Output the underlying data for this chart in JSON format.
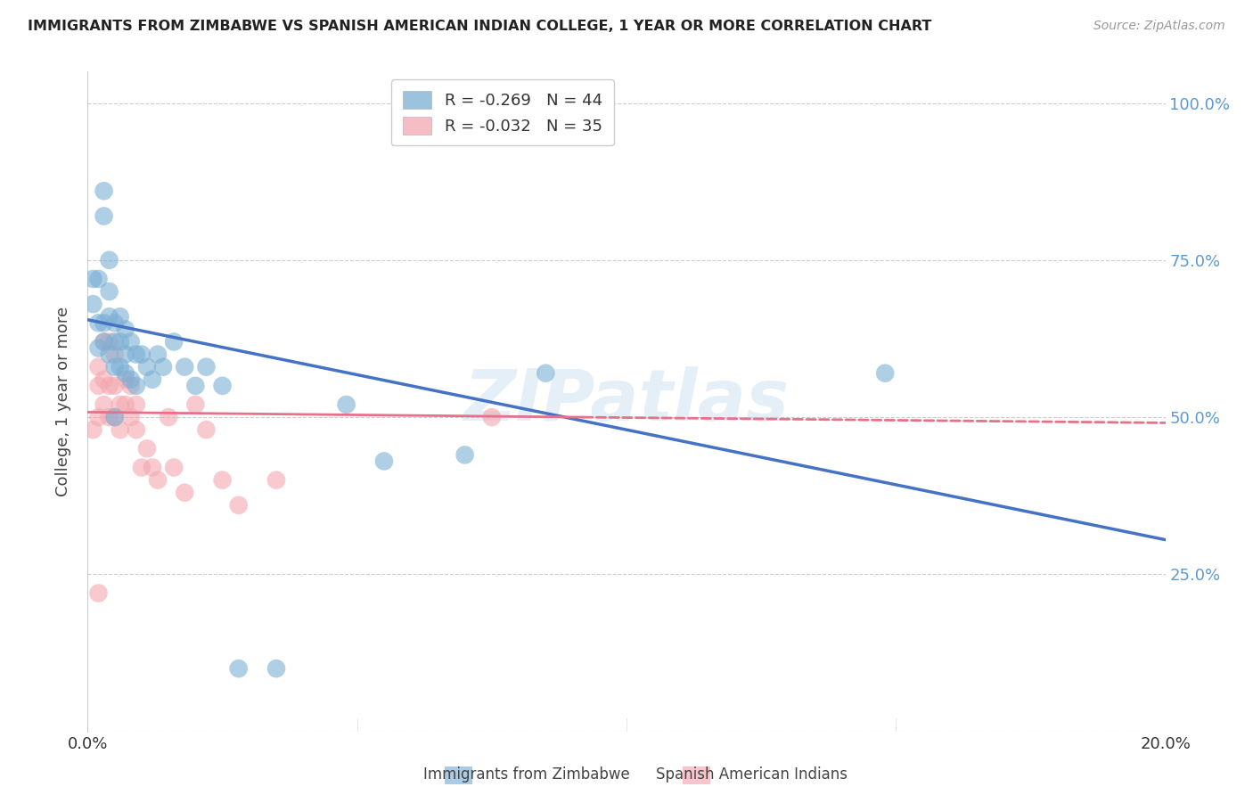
{
  "title": "IMMIGRANTS FROM ZIMBABWE VS SPANISH AMERICAN INDIAN COLLEGE, 1 YEAR OR MORE CORRELATION CHART",
  "source": "Source: ZipAtlas.com",
  "ylabel": "College, 1 year or more",
  "xlim": [
    0.0,
    0.2
  ],
  "ylim": [
    0.0,
    1.05
  ],
  "yticks": [
    0.0,
    0.25,
    0.5,
    0.75,
    1.0
  ],
  "ytick_labels": [
    "",
    "25.0%",
    "50.0%",
    "75.0%",
    "100.0%"
  ],
  "xticks": [
    0.0,
    0.05,
    0.1,
    0.15,
    0.2
  ],
  "xtick_labels": [
    "0.0%",
    "",
    "",
    "",
    "20.0%"
  ],
  "legend_blue_r": "R = -0.269",
  "legend_blue_n": "N = 44",
  "legend_pink_r": "R = -0.032",
  "legend_pink_n": "N = 35",
  "blue_color": "#7BAFD4",
  "pink_color": "#F4A7B0",
  "trendline_blue_color": "#4472C4",
  "trendline_pink_color": "#E8718A",
  "watermark": "ZIPatlas",
  "blue_trendline": [
    [
      0.0,
      0.655
    ],
    [
      0.2,
      0.305
    ]
  ],
  "pink_trendline_solid": [
    [
      0.0,
      0.508
    ],
    [
      0.092,
      0.5
    ]
  ],
  "pink_trendline_dashed": [
    [
      0.092,
      0.5
    ],
    [
      0.2,
      0.491
    ]
  ],
  "blue_points_x": [
    0.001,
    0.001,
    0.002,
    0.002,
    0.002,
    0.003,
    0.003,
    0.003,
    0.003,
    0.004,
    0.004,
    0.004,
    0.004,
    0.005,
    0.005,
    0.005,
    0.006,
    0.006,
    0.006,
    0.007,
    0.007,
    0.007,
    0.008,
    0.008,
    0.009,
    0.009,
    0.01,
    0.011,
    0.012,
    0.013,
    0.014,
    0.016,
    0.018,
    0.02,
    0.022,
    0.025,
    0.028,
    0.035,
    0.048,
    0.055,
    0.07,
    0.085,
    0.148,
    0.005
  ],
  "blue_points_y": [
    0.68,
    0.72,
    0.61,
    0.65,
    0.72,
    0.62,
    0.65,
    0.82,
    0.86,
    0.6,
    0.66,
    0.7,
    0.75,
    0.58,
    0.62,
    0.65,
    0.58,
    0.62,
    0.66,
    0.57,
    0.6,
    0.64,
    0.56,
    0.62,
    0.55,
    0.6,
    0.6,
    0.58,
    0.56,
    0.6,
    0.58,
    0.62,
    0.58,
    0.55,
    0.58,
    0.55,
    0.1,
    0.1,
    0.52,
    0.43,
    0.44,
    0.57,
    0.57,
    0.5
  ],
  "pink_points_x": [
    0.001,
    0.002,
    0.002,
    0.002,
    0.003,
    0.003,
    0.003,
    0.004,
    0.004,
    0.004,
    0.005,
    0.005,
    0.005,
    0.006,
    0.006,
    0.007,
    0.007,
    0.008,
    0.008,
    0.009,
    0.009,
    0.01,
    0.011,
    0.012,
    0.013,
    0.015,
    0.016,
    0.018,
    0.02,
    0.022,
    0.025,
    0.028,
    0.035,
    0.075,
    0.002
  ],
  "pink_points_y": [
    0.48,
    0.5,
    0.55,
    0.58,
    0.52,
    0.56,
    0.62,
    0.5,
    0.55,
    0.62,
    0.5,
    0.55,
    0.6,
    0.48,
    0.52,
    0.52,
    0.56,
    0.5,
    0.55,
    0.48,
    0.52,
    0.42,
    0.45,
    0.42,
    0.4,
    0.5,
    0.42,
    0.38,
    0.52,
    0.48,
    0.4,
    0.36,
    0.4,
    0.5,
    0.22
  ]
}
